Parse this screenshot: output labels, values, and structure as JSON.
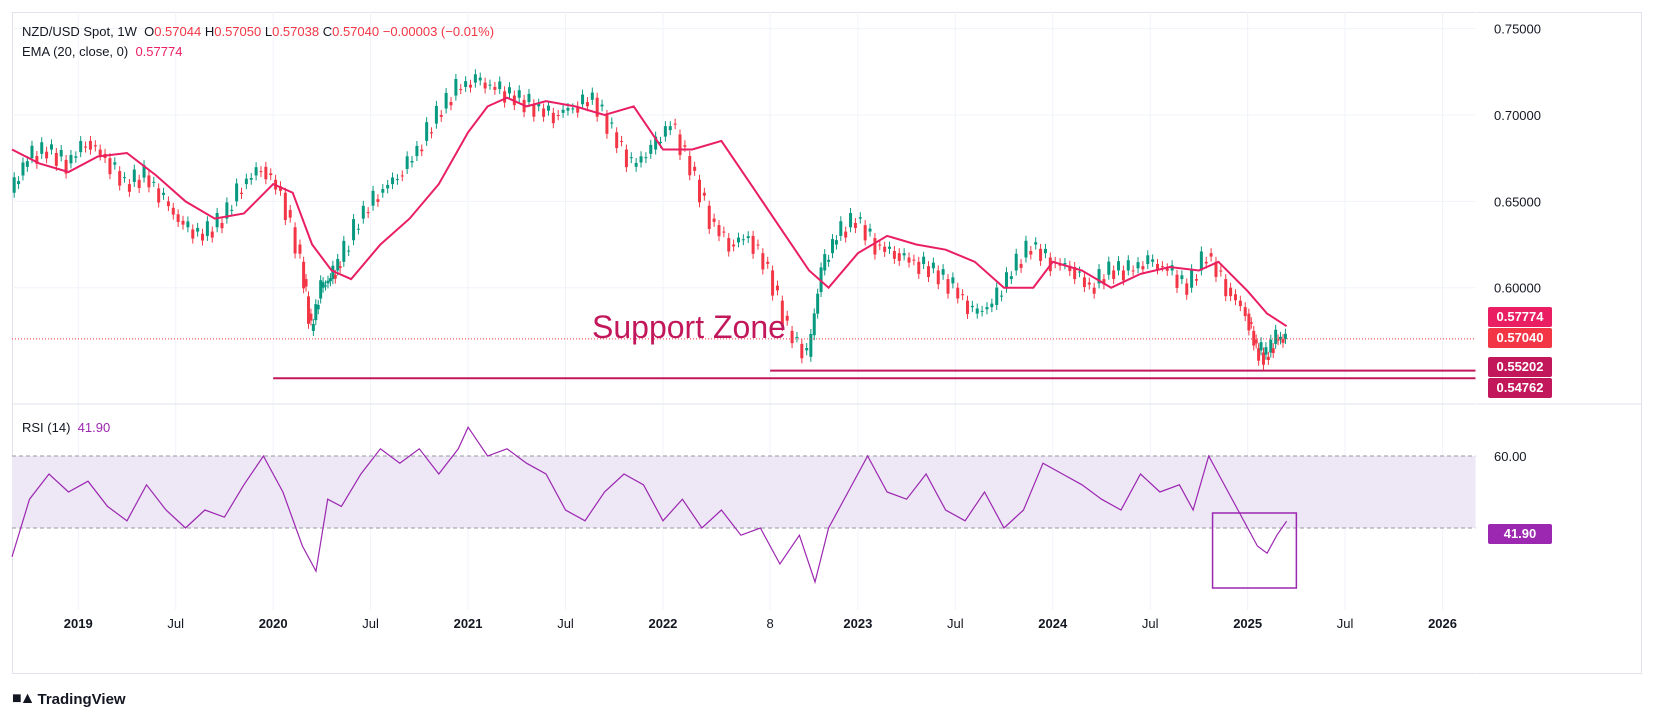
{
  "header": {
    "symbol": "NZD/USD Spot, 1W",
    "o_label": "O",
    "o": "0.57044",
    "h_label": "H",
    "h": "0.57050",
    "l_label": "L",
    "l": "0.57038",
    "c_label": "C",
    "c": "0.57040",
    "change": "−0.00003 (−0.01%)"
  },
  "ema_legend": {
    "label": "EMA (20, close, 0)",
    "value": "0.57774"
  },
  "rsi_legend": {
    "label": "RSI (14)",
    "value": "41.90"
  },
  "annotation": {
    "text": "Support Zone"
  },
  "price_tags": {
    "ema": "0.57774",
    "close": "0.57040",
    "support1": "0.55202",
    "support2": "0.54762"
  },
  "rsi_tag": "41.90",
  "branding": {
    "name": "TradingView"
  },
  "colors": {
    "up": "#089981",
    "down": "#f23645",
    "ema": "#e91e63",
    "support": "#c2185b",
    "rsi": "#9c27b0",
    "rsi_band": "#ede7f6"
  },
  "chart_data": [
    {
      "type": "candlestick",
      "title": "NZD/USD Spot, 1W",
      "y_ticks": [
        "0.75000",
        "0.70000",
        "0.65000",
        "0.60000"
      ],
      "ylim": [
        0.535,
        0.755
      ],
      "x_ticks": [
        "2019",
        "Jul",
        "2020",
        "Jul",
        "2021",
        "Jul",
        "2022",
        "8",
        "2023",
        "Jul",
        "2024",
        "Jul",
        "2025",
        "Jul",
        "2026"
      ],
      "series": [
        {
          "name": "EMA (20, close, 0)",
          "x": [
            2018.66,
            2018.8,
            2018.95,
            2019.1,
            2019.25,
            2019.4,
            2019.55,
            2019.7,
            2019.85,
            2020.0,
            2020.1,
            2020.2,
            2020.3,
            2020.4,
            2020.55,
            2020.7,
            2020.85,
            2021.0,
            2021.1,
            2021.2,
            2021.3,
            2021.4,
            2021.55,
            2021.7,
            2021.85,
            2022.0,
            2022.15,
            2022.3,
            2022.45,
            2022.6,
            2022.75,
            2022.85,
            2023.0,
            2023.15,
            2023.3,
            2023.45,
            2023.6,
            2023.75,
            2023.9,
            2024.0,
            2024.15,
            2024.3,
            2024.45,
            2024.6,
            2024.75,
            2024.85,
            2025.0,
            2025.1,
            2025.2
          ],
          "values": [
            0.68,
            0.672,
            0.667,
            0.676,
            0.678,
            0.665,
            0.65,
            0.64,
            0.643,
            0.66,
            0.655,
            0.625,
            0.61,
            0.605,
            0.625,
            0.64,
            0.66,
            0.69,
            0.705,
            0.71,
            0.705,
            0.708,
            0.705,
            0.7,
            0.705,
            0.68,
            0.68,
            0.685,
            0.66,
            0.635,
            0.61,
            0.6,
            0.62,
            0.63,
            0.625,
            0.622,
            0.615,
            0.6,
            0.6,
            0.615,
            0.61,
            0.6,
            0.608,
            0.612,
            0.61,
            0.615,
            0.598,
            0.585,
            0.5777
          ]
        },
        {
          "name": "Close",
          "x": [
            2018.66,
            2018.75,
            2018.85,
            2018.95,
            2019.05,
            2019.15,
            2019.25,
            2019.35,
            2019.45,
            2019.55,
            2019.65,
            2019.75,
            2019.85,
            2019.95,
            2020.05,
            2020.15,
            2020.2,
            2020.25,
            2020.3,
            2020.35,
            2020.45,
            2020.55,
            2020.65,
            2020.75,
            2020.85,
            2020.95,
            2021.05,
            2021.15,
            2021.25,
            2021.35,
            2021.45,
            2021.55,
            2021.65,
            2021.75,
            2021.85,
            2021.95,
            2022.05,
            2022.15,
            2022.25,
            2022.35,
            2022.45,
            2022.55,
            2022.65,
            2022.75,
            2022.82,
            2022.9,
            2023.0,
            2023.1,
            2023.2,
            2023.3,
            2023.4,
            2023.5,
            2023.6,
            2023.7,
            2023.8,
            2023.9,
            2024.0,
            2024.1,
            2024.2,
            2024.3,
            2024.4,
            2024.5,
            2024.6,
            2024.7,
            2024.8,
            2024.9,
            2025.0,
            2025.05,
            2025.1,
            2025.15,
            2025.2
          ],
          "values": [
            0.655,
            0.675,
            0.68,
            0.672,
            0.685,
            0.675,
            0.66,
            0.665,
            0.65,
            0.635,
            0.63,
            0.64,
            0.66,
            0.67,
            0.655,
            0.615,
            0.575,
            0.6,
            0.605,
            0.615,
            0.64,
            0.655,
            0.665,
            0.68,
            0.7,
            0.715,
            0.72,
            0.715,
            0.71,
            0.705,
            0.7,
            0.705,
            0.71,
            0.69,
            0.67,
            0.68,
            0.695,
            0.67,
            0.64,
            0.625,
            0.63,
            0.61,
            0.575,
            0.56,
            0.61,
            0.63,
            0.64,
            0.625,
            0.62,
            0.615,
            0.61,
            0.6,
            0.585,
            0.59,
            0.61,
            0.625,
            0.615,
            0.612,
            0.6,
            0.61,
            0.61,
            0.615,
            0.61,
            0.6,
            0.62,
            0.6,
            0.585,
            0.565,
            0.56,
            0.57,
            0.5704
          ]
        }
      ],
      "levels": [
        0.55202,
        0.54762
      ]
    },
    {
      "type": "line",
      "title": "RSI (14)",
      "y_ticks": [
        "60.00"
      ],
      "ylim": [
        20,
        70
      ],
      "band": [
        40,
        60
      ],
      "series": [
        {
          "name": "RSI (14)",
          "x": [
            2018.66,
            2018.75,
            2018.85,
            2018.95,
            2019.05,
            2019.15,
            2019.25,
            2019.35,
            2019.45,
            2019.55,
            2019.65,
            2019.75,
            2019.85,
            2019.95,
            2020.05,
            2020.15,
            2020.22,
            2020.28,
            2020.35,
            2020.45,
            2020.55,
            2020.65,
            2020.75,
            2020.85,
            2020.95,
            2021.0,
            2021.1,
            2021.2,
            2021.3,
            2021.4,
            2021.5,
            2021.6,
            2021.7,
            2021.8,
            2021.9,
            2022.0,
            2022.1,
            2022.2,
            2022.3,
            2022.4,
            2022.5,
            2022.6,
            2022.7,
            2022.78,
            2022.85,
            2022.95,
            2023.05,
            2023.15,
            2023.25,
            2023.35,
            2023.45,
            2023.55,
            2023.65,
            2023.75,
            2023.85,
            2023.95,
            2024.05,
            2024.15,
            2024.25,
            2024.35,
            2024.45,
            2024.55,
            2024.65,
            2024.72,
            2024.8,
            2024.9,
            2025.0,
            2025.05,
            2025.1,
            2025.15,
            2025.2
          ],
          "values": [
            32,
            48,
            55,
            50,
            53,
            46,
            42,
            52,
            45,
            40,
            45,
            43,
            52,
            60,
            50,
            35,
            28,
            48,
            46,
            55,
            62,
            58,
            62,
            55,
            62,
            68,
            60,
            62,
            58,
            55,
            45,
            42,
            50,
            55,
            52,
            42,
            48,
            40,
            45,
            38,
            40,
            30,
            38,
            25,
            40,
            50,
            60,
            50,
            48,
            55,
            45,
            42,
            50,
            40,
            45,
            58,
            55,
            52,
            48,
            45,
            55,
            50,
            52,
            45,
            60,
            50,
            40,
            35,
            33,
            38,
            41.9
          ]
        }
      ]
    }
  ]
}
